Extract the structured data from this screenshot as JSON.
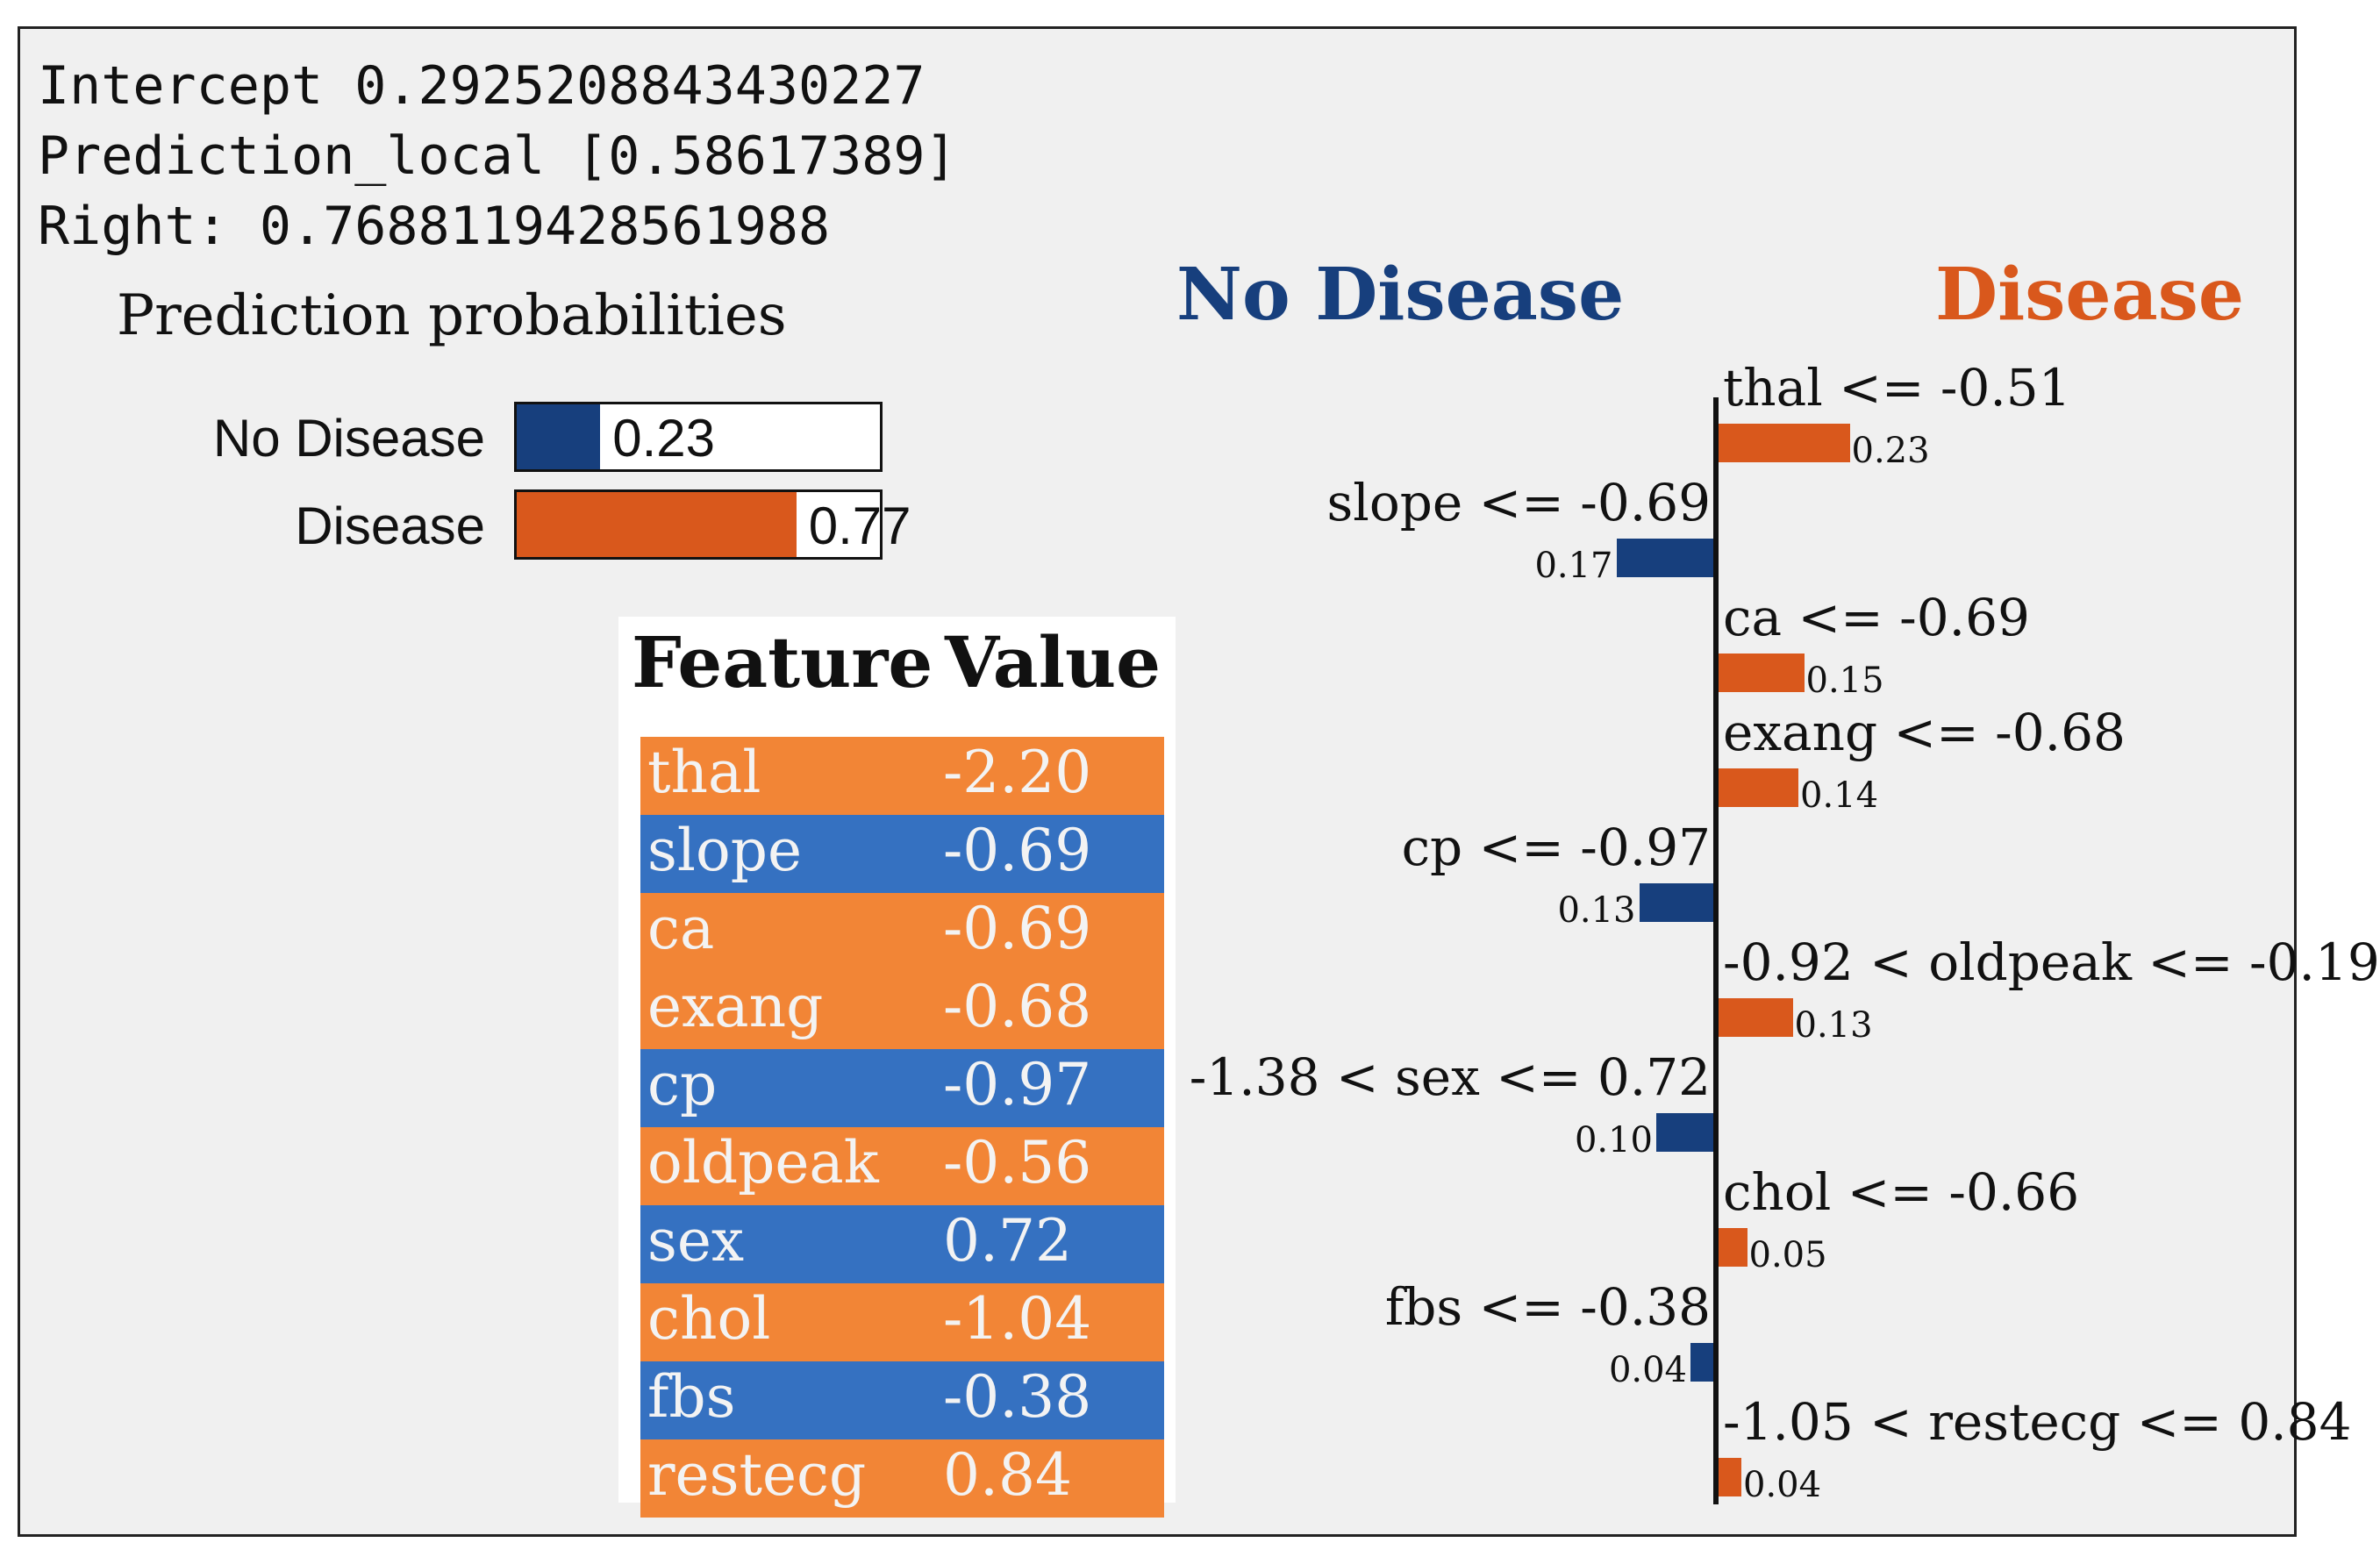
{
  "header": {
    "intercept": "Intercept 0.2925208843430227",
    "prediction_local": "Prediction_local [0.58617389]",
    "right": "Right: 0.7688119428561988"
  },
  "colors": {
    "no_disease": "#173f7d",
    "disease": "#d9581c",
    "table_orange": "#f28536",
    "table_blue": "#3571c1"
  },
  "prediction_probabilities": {
    "title": "Prediction probabilities",
    "items": [
      {
        "label": "No Disease",
        "value": 0.23,
        "display": "0.23"
      },
      {
        "label": "Disease",
        "value": 0.77,
        "display": "0.77"
      }
    ]
  },
  "feature_table": {
    "header_feature": "Feature",
    "header_value": "Value",
    "rows": [
      {
        "feature": "thal",
        "value": "-2.20",
        "side": "disease"
      },
      {
        "feature": "slope",
        "value": "-0.69",
        "side": "no_disease"
      },
      {
        "feature": "ca",
        "value": "-0.69",
        "side": "disease"
      },
      {
        "feature": "exang",
        "value": "-0.68",
        "side": "disease"
      },
      {
        "feature": "cp",
        "value": "-0.97",
        "side": "no_disease"
      },
      {
        "feature": "oldpeak",
        "value": "-0.56",
        "side": "disease"
      },
      {
        "feature": "sex",
        "value": "0.72",
        "side": "no_disease"
      },
      {
        "feature": "chol",
        "value": "-1.04",
        "side": "disease"
      },
      {
        "feature": "fbs",
        "value": "-0.38",
        "side": "no_disease"
      },
      {
        "feature": "restecg",
        "value": "0.84",
        "side": "disease"
      }
    ]
  },
  "chart_data": {
    "type": "bar",
    "title_left": "No Disease",
    "title_right": "Disease",
    "categories": [
      "thal <= -0.51",
      "slope <= -0.69",
      "ca <= -0.69",
      "exang <= -0.68",
      "cp <= -0.97",
      "-0.92 < oldpeak <= -0.19",
      "-1.38 < sex <= 0.72",
      "chol <= -0.66",
      "fbs <= -0.38",
      "-1.05 < restecg <= 0.84"
    ],
    "values": [
      0.23,
      -0.17,
      0.15,
      0.14,
      -0.13,
      0.13,
      -0.1,
      0.05,
      -0.04,
      0.04
    ],
    "labels": [
      "0.23",
      "0.17",
      "0.15",
      "0.14",
      "0.13",
      "0.13",
      "0.10",
      "0.05",
      "0.04",
      "0.04"
    ],
    "orientation": "horizontal"
  }
}
